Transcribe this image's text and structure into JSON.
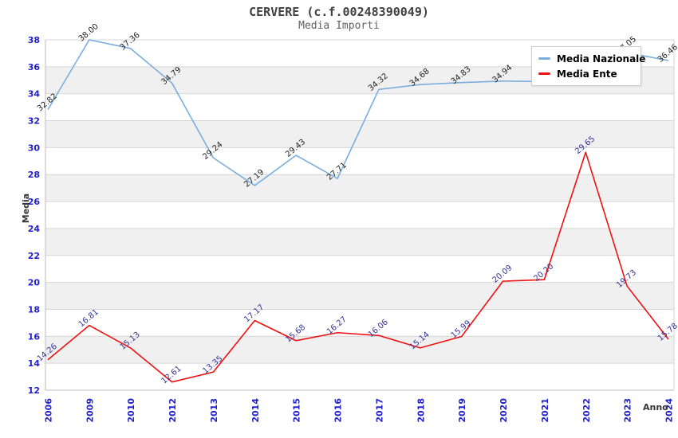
{
  "title": "CERVERE (c.f.00248390049)",
  "subtitle": "Media Importi",
  "colors": {
    "band": "#f0f0f0",
    "grid": "#d6d6d6",
    "axis": "#bbbbbb",
    "tick_label": "#2222cc",
    "nazionale_line": "#7aaede",
    "ente_line": "#ee1111",
    "nazionale_label": "#222222",
    "ente_label": "#333399"
  },
  "legend": {
    "items": [
      {
        "label": "Media Nazionale",
        "color": "#7aaede"
      },
      {
        "label": "Media Ente",
        "color": "#ee1111"
      }
    ]
  },
  "chart_data": {
    "type": "line",
    "title": "CERVERE (c.f.00248390049)",
    "subtitle": "Media Importi",
    "xlabel": "Anno",
    "ylabel": "Media",
    "ylim": [
      12,
      38
    ],
    "ytick_step": 2,
    "yticks": [
      12,
      14,
      16,
      18,
      20,
      22,
      24,
      26,
      28,
      30,
      32,
      34,
      36,
      38
    ],
    "grid": "horizontal-bands",
    "legend_position": "top-right",
    "x": [
      "2006",
      "2009",
      "2010",
      "2012",
      "2013",
      "2014",
      "2015",
      "2016",
      "2017",
      "2018",
      "2019",
      "2020",
      "2021",
      "2022",
      "2023",
      "2024"
    ],
    "series": [
      {
        "name": "Media Nazionale",
        "color": "#7aaede",
        "label_color": "#222222",
        "values": [
          32.82,
          38.0,
          37.36,
          34.79,
          29.24,
          27.19,
          29.43,
          27.71,
          34.32,
          34.68,
          34.83,
          34.94,
          34.9,
          36.0,
          37.05,
          36.46
        ],
        "labels": [
          "32.82",
          "38.00",
          "37.36",
          "34.79",
          "29.24",
          "27.19",
          "29.43",
          "27.71",
          "34.32",
          "34.68",
          "34.83",
          "34.94",
          "",
          "",
          "37.05",
          "36.46"
        ],
        "note": "2021 and 2022 labels hidden behind legend box in original"
      },
      {
        "name": "Media Ente",
        "color": "#ee1111",
        "label_color": "#333399",
        "values": [
          14.26,
          16.81,
          15.13,
          12.61,
          13.35,
          17.17,
          15.68,
          16.27,
          16.06,
          15.14,
          15.99,
          20.09,
          20.2,
          29.65,
          19.73,
          15.78
        ],
        "labels": [
          "14.26",
          "16.81",
          "15.13",
          "12.61",
          "13.35",
          "17.17",
          "15.68",
          "16.27",
          "16.06",
          "15.14",
          "15.99",
          "20.09",
          "20.20",
          "29.65",
          "19.73",
          "15.78"
        ]
      }
    ]
  }
}
